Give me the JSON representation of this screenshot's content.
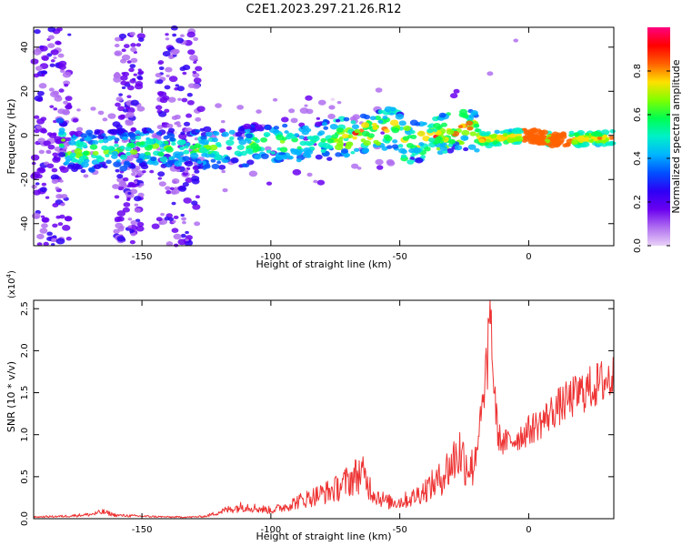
{
  "figure_title": "C2E1.2023.297.21.26.R12",
  "colors": {
    "snr_line": "#ee3333",
    "colormap": [
      "#ffffff",
      "#e9d2f7",
      "#b06ef0",
      "#6a00f0",
      "#2d00f5",
      "#0050ff",
      "#00b4ff",
      "#00f0c8",
      "#00ff50",
      "#80ff00",
      "#ffe000",
      "#ff6000",
      "#ff0000",
      "#ff0080"
    ]
  },
  "chart_data": [
    {
      "type": "heatmap",
      "xlabel": "Height of straight line (km)",
      "ylabel": "Frequency (Hz)",
      "xlim": [
        -192,
        33
      ],
      "ylim": [
        -50,
        49
      ],
      "x_ticks": [
        -150,
        -100,
        -50,
        0
      ],
      "x_tick_labels": [
        "-150",
        "-100",
        "-50",
        "0"
      ],
      "y_ticks": [
        -40,
        -20,
        0,
        20,
        40
      ],
      "y_tick_labels": [
        "-40",
        "-20",
        "0",
        "20",
        "40"
      ],
      "colorbar": {
        "label": "Normalized spectral amplitude",
        "range": [
          0,
          1
        ],
        "ticks": [
          0.0,
          0.2,
          0.4,
          0.6,
          0.8
        ],
        "tick_labels": [
          "0.0",
          "0.2",
          "0.4",
          "0.6",
          "0.8"
        ]
      },
      "ridge": [
        {
          "x": -180,
          "y": -8
        },
        {
          "x": -150,
          "y": -6
        },
        {
          "x": -125,
          "y": -6
        },
        {
          "x": -100,
          "y": -4
        },
        {
          "x": -75,
          "y": -2
        },
        {
          "x": -52,
          "y": 4
        },
        {
          "x": -47,
          "y": -4
        },
        {
          "x": -30,
          "y": 2
        },
        {
          "x": -22,
          "y": 3
        },
        {
          "x": -18,
          "y": -2
        },
        {
          "x": 0,
          "y": 0
        },
        {
          "x": 10,
          "y": -2
        },
        {
          "x": 33,
          "y": -1
        }
      ]
    },
    {
      "type": "line",
      "xlabel": "Height of straight line (km)",
      "ylabel": "SNR (10 * v/v)",
      "y_scale_label": "(x10",
      "y_scale_exp": "4",
      "xlim": [
        -192,
        33
      ],
      "ylim": [
        0,
        2.6
      ],
      "x_ticks": [
        -150,
        -100,
        -50,
        0
      ],
      "x_tick_labels": [
        "-150",
        "-100",
        "-50",
        "0"
      ],
      "y_ticks": [
        0.0,
        0.5,
        1.0,
        1.5,
        2.0,
        2.5
      ],
      "y_tick_labels": [
        "0.0",
        "0.5",
        "1.0",
        "1.5",
        "2.0",
        "2.5"
      ],
      "series": [
        {
          "x": [
            -192,
            -180,
            -170,
            -165,
            -160,
            -150,
            -140,
            -130,
            -125,
            -120,
            -115,
            -110,
            -105,
            -100,
            -95,
            -90,
            -85,
            -80,
            -75,
            -70,
            -65,
            -60,
            -55,
            -50,
            -45,
            -40,
            -35,
            -30,
            -27,
            -25,
            -22,
            -20,
            -18,
            -16,
            -15,
            -14,
            -12,
            -10,
            -5,
            0,
            5,
            10,
            15,
            20,
            25,
            30,
            33
          ],
          "y": [
            0.02,
            0.03,
            0.05,
            0.08,
            0.04,
            0.03,
            0.02,
            0.02,
            0.03,
            0.08,
            0.12,
            0.15,
            0.12,
            0.1,
            0.14,
            0.2,
            0.25,
            0.3,
            0.35,
            0.45,
            0.55,
            0.3,
            0.2,
            0.2,
            0.25,
            0.35,
            0.45,
            0.65,
            0.8,
            0.7,
            0.6,
            0.9,
            1.3,
            1.6,
            2.5,
            1.8,
            1.0,
            0.9,
            0.95,
            1.05,
            1.15,
            1.3,
            1.4,
            1.5,
            1.57,
            1.65,
            1.68
          ]
        }
      ]
    }
  ]
}
